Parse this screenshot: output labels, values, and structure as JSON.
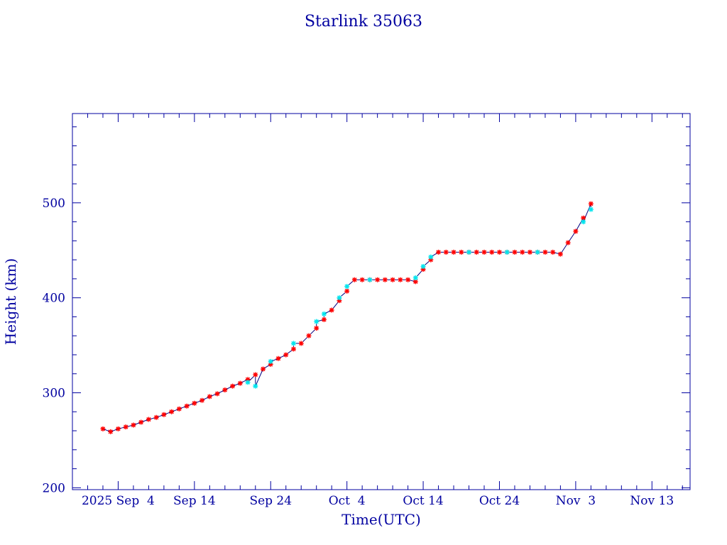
{
  "chart_data": {
    "type": "scatter",
    "title": "Starlink 35063",
    "xlabel": "Time(UTC)",
    "ylabel": "Height (km)",
    "xlim": [
      "2025-08-29",
      "2025-11-18"
    ],
    "ylim": [
      198,
      594
    ],
    "grid": false,
    "x_ticks": [
      {
        "date": "2025-09-04",
        "label": "2025 Sep  4"
      },
      {
        "date": "2025-09-14",
        "label": "Sep 14"
      },
      {
        "date": "2025-09-24",
        "label": "Sep 24"
      },
      {
        "date": "2025-10-04",
        "label": "Oct  4"
      },
      {
        "date": "2025-10-14",
        "label": "Oct 14"
      },
      {
        "date": "2025-10-24",
        "label": "Oct 24"
      },
      {
        "date": "2025-11-03",
        "label": "Nov  3"
      },
      {
        "date": "2025-11-13",
        "label": "Nov 13"
      }
    ],
    "y_ticks": [
      200,
      300,
      400,
      500
    ],
    "colors": {
      "axis": "#0000a0",
      "line": "#000080",
      "red_marker": "#ff0000",
      "cyan_marker": "#00e5ee"
    },
    "series": [
      {
        "marker": "red-star",
        "points": [
          [
            "2025-09-02",
            262
          ],
          [
            "2025-09-03",
            259
          ],
          [
            "2025-09-04",
            262
          ],
          [
            "2025-09-05",
            264
          ],
          [
            "2025-09-06",
            266
          ],
          [
            "2025-09-07",
            269
          ],
          [
            "2025-09-08",
            272
          ],
          [
            "2025-09-09",
            274
          ],
          [
            "2025-09-10",
            277
          ],
          [
            "2025-09-11",
            280
          ],
          [
            "2025-09-12",
            283
          ],
          [
            "2025-09-13",
            286
          ],
          [
            "2025-09-14",
            289
          ],
          [
            "2025-09-15",
            292
          ],
          [
            "2025-09-16",
            296
          ],
          [
            "2025-09-17",
            299
          ],
          [
            "2025-09-18",
            303
          ],
          [
            "2025-09-19",
            307
          ],
          [
            "2025-09-20",
            310
          ],
          [
            "2025-09-21",
            314
          ],
          [
            "2025-09-22",
            319
          ],
          [
            "2025-09-23",
            325
          ],
          [
            "2025-09-24",
            330
          ],
          [
            "2025-09-25",
            336
          ],
          [
            "2025-09-26",
            340
          ],
          [
            "2025-09-27",
            346
          ],
          [
            "2025-09-28",
            352
          ],
          [
            "2025-09-29",
            360
          ],
          [
            "2025-09-30",
            368
          ],
          [
            "2025-10-01",
            377
          ],
          [
            "2025-10-02",
            387
          ],
          [
            "2025-10-03",
            397
          ],
          [
            "2025-10-04",
            407
          ],
          [
            "2025-10-05",
            419
          ],
          [
            "2025-10-06",
            419
          ],
          [
            "2025-10-07",
            419
          ],
          [
            "2025-10-08",
            419
          ],
          [
            "2025-10-09",
            419
          ],
          [
            "2025-10-10",
            419
          ],
          [
            "2025-10-11",
            419
          ],
          [
            "2025-10-12",
            419
          ],
          [
            "2025-10-13",
            417
          ],
          [
            "2025-10-14",
            430
          ],
          [
            "2025-10-15",
            440
          ],
          [
            "2025-10-16",
            448
          ],
          [
            "2025-10-17",
            448
          ],
          [
            "2025-10-18",
            448
          ],
          [
            "2025-10-19",
            448
          ],
          [
            "2025-10-20",
            448
          ],
          [
            "2025-10-21",
            448
          ],
          [
            "2025-10-22",
            448
          ],
          [
            "2025-10-23",
            448
          ],
          [
            "2025-10-24",
            448
          ],
          [
            "2025-10-25",
            448
          ],
          [
            "2025-10-26",
            448
          ],
          [
            "2025-10-27",
            448
          ],
          [
            "2025-10-28",
            448
          ],
          [
            "2025-10-29",
            448
          ],
          [
            "2025-10-30",
            448
          ],
          [
            "2025-10-31",
            448
          ],
          [
            "2025-11-01",
            446
          ],
          [
            "2025-11-02",
            458
          ],
          [
            "2025-11-03",
            470
          ],
          [
            "2025-11-04",
            484
          ],
          [
            "2025-11-05",
            499
          ]
        ]
      },
      {
        "marker": "cyan-star",
        "points": [
          [
            "2025-09-21",
            311
          ],
          [
            "2025-09-22",
            307
          ],
          [
            "2025-09-24",
            333
          ],
          [
            "2025-09-27",
            352
          ],
          [
            "2025-09-30",
            375
          ],
          [
            "2025-10-01",
            383
          ],
          [
            "2025-10-03",
            400
          ],
          [
            "2025-10-04",
            412
          ],
          [
            "2025-10-07",
            419
          ],
          [
            "2025-10-13",
            421
          ],
          [
            "2025-10-14",
            433
          ],
          [
            "2025-10-15",
            443
          ],
          [
            "2025-10-20",
            448
          ],
          [
            "2025-10-25",
            448
          ],
          [
            "2025-10-29",
            448
          ],
          [
            "2025-11-04",
            480
          ],
          [
            "2025-11-05",
            493
          ]
        ]
      }
    ]
  }
}
